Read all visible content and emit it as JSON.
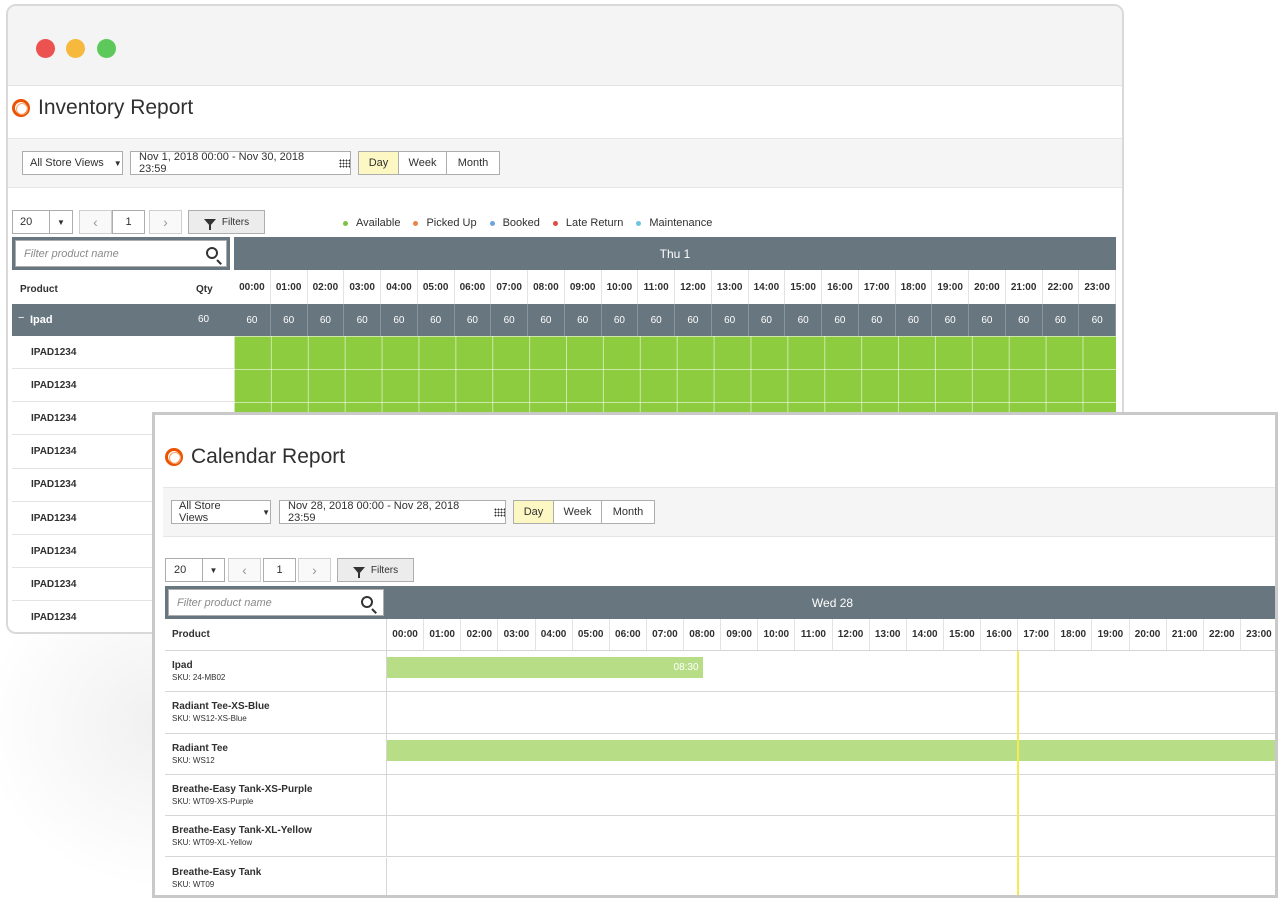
{
  "inventory": {
    "title": "Inventory Report",
    "store_view": "All Store Views",
    "date_range": "Nov 1, 2018 00:00 - Nov 30, 2018 23:59",
    "view_modes": [
      "Day",
      "Week",
      "Month"
    ],
    "active_view": "Day",
    "page_size": "20",
    "page": "1",
    "filters_label": "Filters",
    "legend": [
      {
        "label": "Available",
        "color": "#7cc144"
      },
      {
        "label": "Picked Up",
        "color": "#e8844a"
      },
      {
        "label": "Booked",
        "color": "#6ea4dc"
      },
      {
        "label": "Late Return",
        "color": "#e04b43"
      },
      {
        "label": "Maintenance",
        "color": "#6dc3e0"
      }
    ],
    "search_placeholder": "Filter product name",
    "day_label": "Thu 1",
    "col_product": "Product",
    "col_qty": "Qty",
    "hours": [
      "00:00",
      "01:00",
      "02:00",
      "03:00",
      "04:00",
      "05:00",
      "06:00",
      "07:00",
      "08:00",
      "09:00",
      "10:00",
      "11:00",
      "12:00",
      "13:00",
      "14:00",
      "15:00",
      "16:00",
      "17:00",
      "18:00",
      "19:00",
      "20:00",
      "21:00",
      "22:00",
      "23:00"
    ],
    "group": {
      "toggle": "−",
      "name": "Ipad",
      "qty": "60",
      "hourly": [
        "60",
        "60",
        "60",
        "60",
        "60",
        "60",
        "60",
        "60",
        "60",
        "60",
        "60",
        "60",
        "60",
        "60",
        "60",
        "60",
        "60",
        "60",
        "60",
        "60",
        "60",
        "60",
        "60",
        "60"
      ]
    },
    "rows": [
      "IPAD1234",
      "IPAD1234",
      "IPAD1234",
      "IPAD1234",
      "IPAD1234",
      "IPAD1234",
      "IPAD1234",
      "IPAD1234",
      "IPAD1234"
    ]
  },
  "calendar": {
    "title": "Calendar Report",
    "store_view": "All Store Views",
    "date_range": "Nov 28, 2018 00:00 - Nov 28, 2018 23:59",
    "view_modes": [
      "Day",
      "Week",
      "Month"
    ],
    "active_view": "Day",
    "page_size": "20",
    "page": "1",
    "filters_label": "Filters",
    "search_placeholder": "Filter product name",
    "day_label": "Wed 28",
    "col_product": "Product",
    "hours": [
      "00:00",
      "01:00",
      "02:00",
      "03:00",
      "04:00",
      "05:00",
      "06:00",
      "07:00",
      "08:00",
      "09:00",
      "10:00",
      "11:00",
      "12:00",
      "13:00",
      "14:00",
      "15:00",
      "16:00",
      "17:00",
      "18:00",
      "19:00",
      "20:00",
      "21:00",
      "22:00",
      "23:00"
    ],
    "products": [
      {
        "name": "Ipad",
        "sku": "SKU: 24-MB02"
      },
      {
        "name": "Radiant Tee-XS-Blue",
        "sku": "SKU: WS12-XS-Blue"
      },
      {
        "name": "Radiant Tee",
        "sku": "SKU: WS12"
      },
      {
        "name": "Breathe-Easy Tank-XS-Purple",
        "sku": "SKU: WT09-XS-Purple"
      },
      {
        "name": "Breathe-Easy Tank-XL-Yellow",
        "sku": "SKU: WT09-XL-Yellow"
      },
      {
        "name": "Breathe-Easy Tank",
        "sku": "SKU: WT09"
      }
    ],
    "bars": [
      {
        "row": 0,
        "start_hour": 0,
        "end_hour": 8.5,
        "label": "08:30"
      },
      {
        "row": 2,
        "start_hour": 0,
        "end_hour": 24,
        "label": ""
      }
    ],
    "current_time_hour": 17,
    "bar_color": "#b7de86",
    "now_line_color": "#f5ea4f"
  }
}
